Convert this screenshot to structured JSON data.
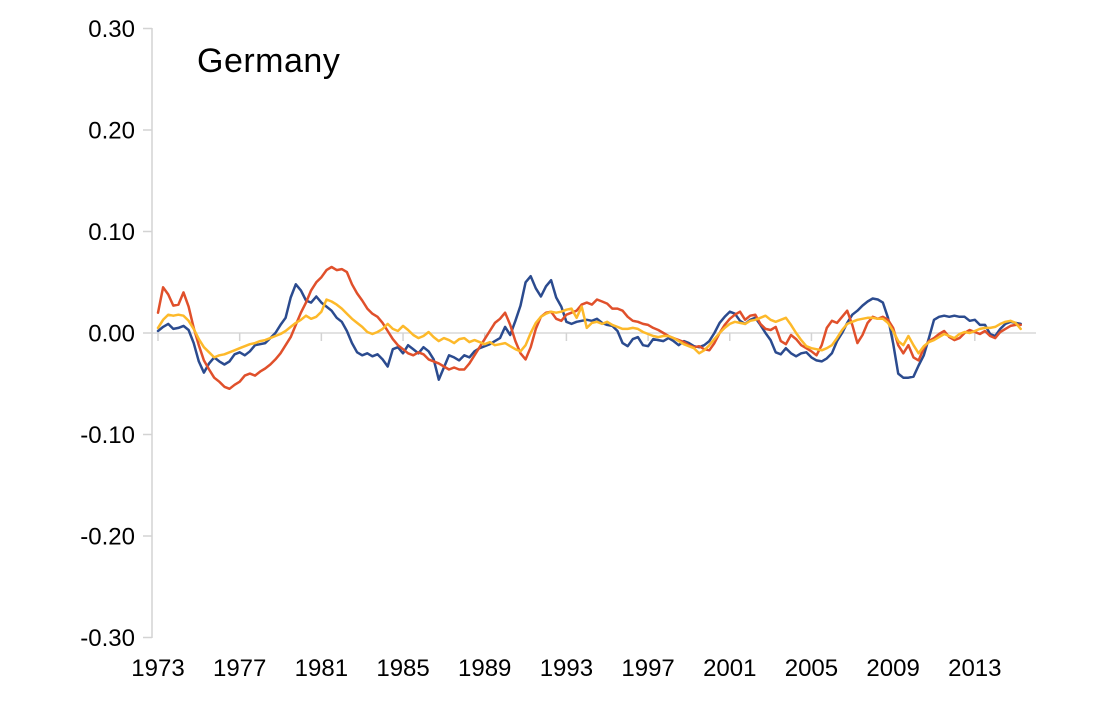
{
  "title": "Germany",
  "colors": {
    "series_blue": "#2B4B8F",
    "series_red": "#E0502B",
    "series_yellow": "#FDB92A",
    "axis": "#D3D3D3",
    "gridline": "#D9D9D9",
    "text": "#000000",
    "background": "#FFFFFF"
  },
  "y_axis": {
    "tick_labels": [
      "0.30",
      "0.20",
      "0.10",
      "0.00",
      "-0.10",
      "-0.20",
      "-0.30"
    ],
    "tick_values": [
      0.3,
      0.2,
      0.1,
      0.0,
      -0.1,
      -0.2,
      -0.3
    ]
  },
  "x_axis": {
    "tick_labels": [
      "1973",
      "1977",
      "1981",
      "1985",
      "1989",
      "1993",
      "1997",
      "2001",
      "2005",
      "2009",
      "2013"
    ],
    "tick_years": [
      1973,
      1977,
      1981,
      1985,
      1989,
      1993,
      1997,
      2001,
      2005,
      2009,
      2013
    ]
  },
  "chart_data": {
    "type": "line",
    "title": "Germany",
    "xlabel": "",
    "ylabel": "",
    "x_start": 1973.0,
    "x_step": 0.25,
    "x_end": 2015.25,
    "ylim": [
      -0.3,
      0.3
    ],
    "xlim": [
      1973,
      2015.5
    ],
    "grid": "horizontal zero line only",
    "legend": "none",
    "series": [
      {
        "name": "dark-blue-line",
        "color": "#2B4B8F",
        "values": [
          0.002,
          0.006,
          0.009,
          0.004,
          0.005,
          0.007,
          0.003,
          -0.01,
          -0.028,
          -0.039,
          -0.03,
          -0.024,
          -0.028,
          -0.031,
          -0.028,
          -0.021,
          -0.019,
          -0.022,
          -0.018,
          -0.012,
          -0.011,
          -0.01,
          -0.005,
          0.0,
          0.008,
          0.015,
          0.035,
          0.048,
          0.042,
          0.032,
          0.03,
          0.036,
          0.03,
          0.026,
          0.022,
          0.015,
          0.011,
          0.002,
          -0.01,
          -0.019,
          -0.022,
          -0.02,
          -0.023,
          -0.021,
          -0.026,
          -0.033,
          -0.016,
          -0.014,
          -0.02,
          -0.012,
          -0.016,
          -0.02,
          -0.014,
          -0.018,
          -0.026,
          -0.046,
          -0.034,
          -0.022,
          -0.024,
          -0.027,
          -0.022,
          -0.024,
          -0.018,
          -0.015,
          -0.013,
          -0.011,
          -0.008,
          -0.005,
          0.006,
          -0.002,
          0.012,
          0.027,
          0.05,
          0.056,
          0.044,
          0.036,
          0.046,
          0.052,
          0.035,
          0.026,
          0.011,
          0.009,
          0.011,
          0.012,
          0.013,
          0.012,
          0.014,
          0.01,
          0.008,
          0.007,
          0.002,
          -0.01,
          -0.013,
          -0.006,
          -0.004,
          -0.012,
          -0.013,
          -0.006,
          -0.007,
          -0.008,
          -0.005,
          -0.008,
          -0.012,
          -0.008,
          -0.01,
          -0.013,
          -0.014,
          -0.012,
          -0.008,
          0.0,
          0.01,
          0.016,
          0.021,
          0.019,
          0.012,
          0.009,
          0.013,
          0.015,
          0.008,
          0.0,
          -0.007,
          -0.019,
          -0.021,
          -0.015,
          -0.02,
          -0.023,
          -0.02,
          -0.019,
          -0.024,
          -0.027,
          -0.028,
          -0.025,
          -0.02,
          -0.008,
          0.0,
          0.01,
          0.018,
          0.022,
          0.027,
          0.031,
          0.034,
          0.033,
          0.03,
          0.015,
          -0.01,
          -0.04,
          -0.044,
          -0.044,
          -0.043,
          -0.032,
          -0.022,
          -0.005,
          0.013,
          0.016,
          0.017,
          0.016,
          0.017,
          0.016,
          0.016,
          0.012,
          0.013,
          0.008,
          0.008,
          -0.001,
          -0.003,
          0.004,
          0.009,
          0.011,
          0.01,
          0.009
        ]
      },
      {
        "name": "orange-red-line",
        "color": "#E0502B",
        "values": [
          0.02,
          0.045,
          0.038,
          0.027,
          0.028,
          0.04,
          0.026,
          0.005,
          -0.012,
          -0.027,
          -0.036,
          -0.044,
          -0.048,
          -0.053,
          -0.055,
          -0.051,
          -0.048,
          -0.042,
          -0.04,
          -0.042,
          -0.038,
          -0.035,
          -0.031,
          -0.026,
          -0.02,
          -0.012,
          -0.004,
          0.008,
          0.02,
          0.03,
          0.042,
          0.05,
          0.055,
          0.062,
          0.065,
          0.062,
          0.063,
          0.06,
          0.048,
          0.039,
          0.032,
          0.024,
          0.019,
          0.016,
          0.01,
          0.002,
          -0.006,
          -0.012,
          -0.016,
          -0.02,
          -0.022,
          -0.019,
          -0.021,
          -0.026,
          -0.028,
          -0.03,
          -0.033,
          -0.036,
          -0.034,
          -0.036,
          -0.036,
          -0.03,
          -0.022,
          -0.014,
          -0.006,
          0.002,
          0.01,
          0.014,
          0.02,
          0.008,
          -0.008,
          -0.02,
          -0.026,
          -0.014,
          0.004,
          0.016,
          0.02,
          0.021,
          0.014,
          0.012,
          0.018,
          0.02,
          0.022,
          0.028,
          0.03,
          0.028,
          0.033,
          0.031,
          0.029,
          0.024,
          0.024,
          0.022,
          0.016,
          0.012,
          0.011,
          0.009,
          0.008,
          0.005,
          0.003,
          0.0,
          -0.003,
          -0.005,
          -0.007,
          -0.009,
          -0.012,
          -0.014,
          -0.013,
          -0.016,
          -0.017,
          -0.01,
          0.0,
          0.008,
          0.014,
          0.018,
          0.021,
          0.013,
          0.017,
          0.018,
          0.009,
          0.004,
          0.003,
          0.006,
          -0.008,
          -0.011,
          -0.002,
          -0.006,
          -0.012,
          -0.015,
          -0.018,
          -0.022,
          -0.012,
          0.005,
          0.012,
          0.01,
          0.016,
          0.022,
          0.008,
          -0.01,
          -0.002,
          0.01,
          0.016,
          0.014,
          0.016,
          0.013,
          0.005,
          -0.012,
          -0.02,
          -0.012,
          -0.024,
          -0.027,
          -0.015,
          -0.008,
          -0.005,
          -0.001,
          0.002,
          -0.004,
          -0.007,
          -0.005,
          0.0,
          0.003,
          0.001,
          -0.001,
          0.002,
          -0.003,
          -0.005,
          0.001,
          0.004,
          0.007,
          0.008,
          0.008
        ]
      },
      {
        "name": "yellow-line",
        "color": "#FDB92A",
        "values": [
          0.005,
          0.013,
          0.018,
          0.017,
          0.018,
          0.017,
          0.012,
          0.004,
          -0.006,
          -0.014,
          -0.019,
          -0.024,
          -0.022,
          -0.021,
          -0.019,
          -0.017,
          -0.015,
          -0.013,
          -0.011,
          -0.01,
          -0.008,
          -0.007,
          -0.005,
          -0.003,
          -0.001,
          0.002,
          0.006,
          0.01,
          0.013,
          0.017,
          0.014,
          0.016,
          0.021,
          0.033,
          0.031,
          0.028,
          0.024,
          0.019,
          0.014,
          0.01,
          0.006,
          0.001,
          -0.001,
          0.001,
          0.004,
          0.009,
          0.004,
          0.002,
          0.007,
          0.003,
          -0.002,
          -0.005,
          -0.003,
          0.001,
          -0.004,
          -0.008,
          -0.005,
          -0.007,
          -0.01,
          -0.006,
          -0.005,
          -0.009,
          -0.007,
          -0.009,
          -0.011,
          -0.009,
          -0.012,
          -0.011,
          -0.01,
          -0.013,
          -0.016,
          -0.018,
          -0.012,
          0.0,
          0.01,
          0.016,
          0.019,
          0.021,
          0.02,
          0.021,
          0.023,
          0.024,
          0.015,
          0.026,
          0.005,
          0.01,
          0.011,
          0.009,
          0.011,
          0.008,
          0.006,
          0.004,
          0.004,
          0.005,
          0.004,
          0.001,
          -0.001,
          -0.003,
          -0.004,
          -0.003,
          -0.003,
          -0.005,
          -0.008,
          -0.011,
          -0.013,
          -0.015,
          -0.02,
          -0.017,
          -0.012,
          -0.006,
          0.0,
          0.005,
          0.009,
          0.011,
          0.01,
          0.009,
          0.012,
          0.013,
          0.015,
          0.017,
          0.013,
          0.011,
          0.013,
          0.015,
          0.008,
          0.0,
          -0.007,
          -0.013,
          -0.015,
          -0.016,
          -0.017,
          -0.015,
          -0.012,
          -0.005,
          0.003,
          0.009,
          0.011,
          0.013,
          0.014,
          0.015,
          0.015,
          0.014,
          0.014,
          0.01,
          0.002,
          -0.008,
          -0.012,
          -0.003,
          -0.012,
          -0.02,
          -0.013,
          -0.009,
          -0.007,
          -0.004,
          -0.001,
          -0.003,
          -0.005,
          -0.001,
          0.001,
          0.0,
          0.002,
          0.004,
          0.005,
          0.005,
          0.006,
          0.009,
          0.011,
          0.012,
          0.01,
          0.004
        ]
      }
    ]
  }
}
